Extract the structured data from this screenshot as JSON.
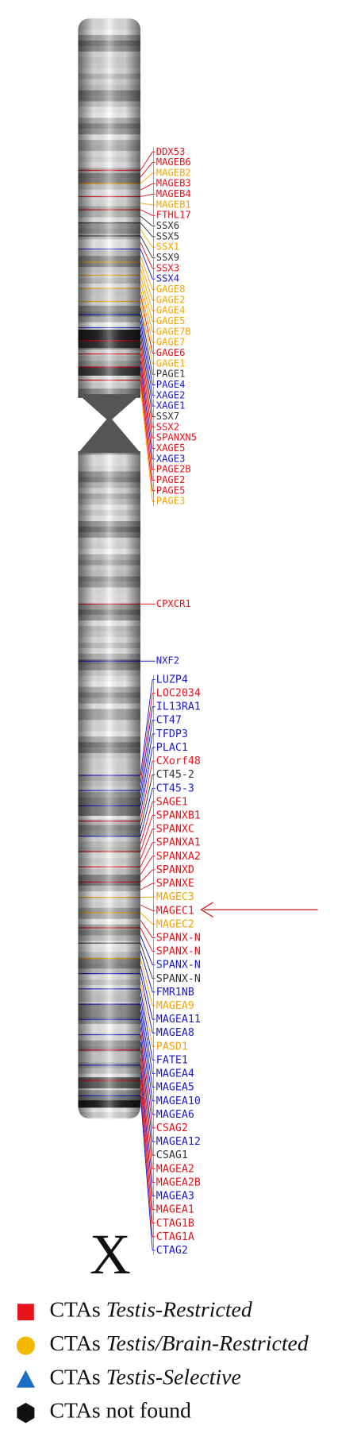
{
  "label": "X",
  "gene_groups": [
    [
      {
        "label": "DDX53",
        "color": "#e3141c"
      },
      {
        "label": "MAGEB6",
        "color": "#e3141c"
      },
      {
        "label": "MAGEB2",
        "color": "#f5a300"
      },
      {
        "label": "MAGEB3",
        "color": "#e3141c"
      },
      {
        "label": "MAGEB4",
        "color": "#e3141c"
      },
      {
        "label": "MAGEB1",
        "color": "#f5a300"
      },
      {
        "label": "FTHL17",
        "color": "#e3141c"
      },
      {
        "label": "SSX6",
        "color": "#333333"
      },
      {
        "label": "SSX5",
        "color": "#333333"
      },
      {
        "label": "SSX1",
        "color": "#f5a300"
      },
      {
        "label": "SSX9",
        "color": "#333333"
      },
      {
        "label": "SSX3",
        "color": "#e3141c"
      },
      {
        "label": "SSX4",
        "color": "#1a1acc"
      },
      {
        "label": "GAGE8",
        "color": "#f5a300"
      },
      {
        "label": "GAGE2",
        "color": "#f5a300"
      },
      {
        "label": "GAGE4",
        "color": "#f5a300"
      },
      {
        "label": "GAGE5",
        "color": "#f5a300"
      },
      {
        "label": "GAGE7B",
        "color": "#f5a300"
      },
      {
        "label": "GAGE7",
        "color": "#f5a300"
      },
      {
        "label": "GAGE6",
        "color": "#e3141c"
      },
      {
        "label": "GAGE1",
        "color": "#f5a300"
      },
      {
        "label": "PAGE1",
        "color": "#333333"
      },
      {
        "label": "PAGE4",
        "color": "#1a1acc"
      },
      {
        "label": "XAGE2",
        "color": "#1a1acc"
      },
      {
        "label": "XAGE1",
        "color": "#1a1acc"
      },
      {
        "label": "SSX7",
        "color": "#333333"
      },
      {
        "label": "SSX2",
        "color": "#e3141c"
      },
      {
        "label": "SPANXN5",
        "color": "#e3141c"
      },
      {
        "label": "XAGE5",
        "color": "#e3141c"
      },
      {
        "label": "XAGE3",
        "color": "#1a1acc"
      },
      {
        "label": "PAGE2B",
        "color": "#e3141c"
      },
      {
        "label": "PAGE2",
        "color": "#e3141c"
      },
      {
        "label": "PAGE5",
        "color": "#e3141c"
      },
      {
        "label": "PAGE3",
        "color": "#f5a300"
      }
    ],
    [
      {
        "label": "CPXCR1",
        "color": "#e3141c"
      }
    ],
    [
      {
        "label": "NXF2",
        "color": "#1a1acc"
      }
    ],
    [
      {
        "label": "LUZP4",
        "color": "#1a1acc"
      },
      {
        "label": "LOC2034",
        "color": "#e3141c"
      },
      {
        "label": "IL13RA1",
        "color": "#1a1acc"
      },
      {
        "label": "CT47",
        "color": "#1a1acc"
      },
      {
        "label": "TFDP3",
        "color": "#1a1acc"
      },
      {
        "label": "PLAC1",
        "color": "#1a1acc"
      },
      {
        "label": "CXorf48",
        "color": "#e3141c"
      },
      {
        "label": "CT45-2",
        "color": "#333333"
      },
      {
        "label": "CT45-3",
        "color": "#1a1acc"
      },
      {
        "label": "SAGE1",
        "color": "#e3141c"
      },
      {
        "label": "SPANXB1",
        "color": "#e3141c"
      },
      {
        "label": "SPANXC",
        "color": "#e3141c"
      },
      {
        "label": "SPANXA1",
        "color": "#e3141c"
      },
      {
        "label": "SPANXA2",
        "color": "#e3141c"
      },
      {
        "label": "SPANXD",
        "color": "#e3141c"
      },
      {
        "label": "SPANXE",
        "color": "#e3141c"
      },
      {
        "label": "MAGEC3",
        "color": "#f5a300"
      },
      {
        "label": "MAGEC1",
        "color": "#e3141c"
      },
      {
        "label": "MAGEC2",
        "color": "#f5a300"
      },
      {
        "label": "SPANX-N",
        "color": "#e3141c"
      },
      {
        "label": "SPANX-N",
        "color": "#e3141c"
      },
      {
        "label": "SPANX-N",
        "color": "#1a1acc"
      },
      {
        "label": "SPANX-N",
        "color": "#333333"
      },
      {
        "label": "FMR1NB",
        "color": "#1a1acc"
      },
      {
        "label": "MAGEA9",
        "color": "#f5a300"
      },
      {
        "label": "MAGEA11",
        "color": "#1a1acc"
      },
      {
        "label": "MAGEA8",
        "color": "#1a1acc"
      },
      {
        "label": "PASD1",
        "color": "#f5a300"
      },
      {
        "label": "FATE1",
        "color": "#1a1acc"
      },
      {
        "label": "MAGEA4",
        "color": "#1a1acc"
      },
      {
        "label": "MAGEA5",
        "color": "#1a1acc"
      },
      {
        "label": "MAGEA10",
        "color": "#1a1acc"
      },
      {
        "label": "MAGEA6",
        "color": "#1a1acc"
      },
      {
        "label": "CSAG2",
        "color": "#e3141c"
      },
      {
        "label": "MAGEA12",
        "color": "#1a1acc"
      },
      {
        "label": "CSAG1",
        "color": "#333333"
      },
      {
        "label": "MAGEA2",
        "color": "#e3141c"
      },
      {
        "label": "MAGEA2B",
        "color": "#e3141c"
      },
      {
        "label": "MAGEA3",
        "color": "#1a1acc"
      },
      {
        "label": "MAGEA1",
        "color": "#e3141c"
      },
      {
        "label": "CTAG1B",
        "color": "#e3141c"
      },
      {
        "label": "CTAG1A",
        "color": "#e3141c"
      },
      {
        "label": "CTAG2",
        "color": "#1a1acc"
      }
    ]
  ],
  "legend": [
    {
      "text": "CTAs",
      "emphasis": "Testis-Restricted",
      "color": "#e3141c",
      "shape": "square"
    },
    {
      "text": "CTAs",
      "emphasis": "Testis/Brain-Restricted",
      "color": "#f5b800",
      "shape": "circle"
    },
    {
      "text": "CTAs",
      "emphasis": "Testis-Selective",
      "color": "#1a6fc4",
      "shape": "triangle"
    },
    {
      "text": "CTAs not found",
      "color": "#111111",
      "shape": "hexagon"
    }
  ]
}
